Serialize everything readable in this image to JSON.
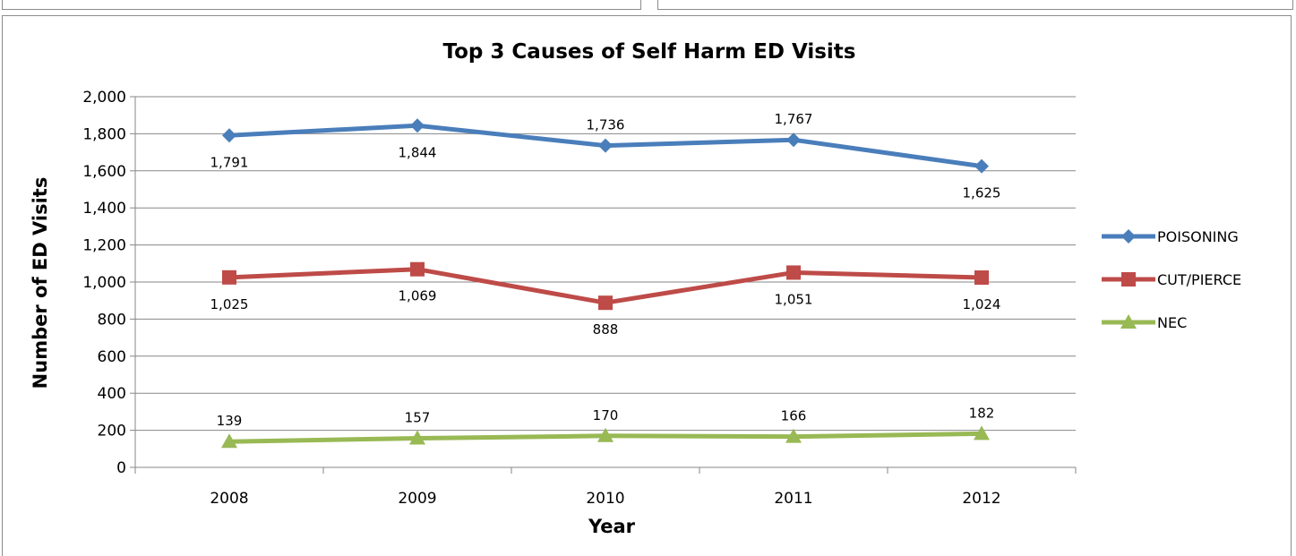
{
  "chart_data": {
    "type": "line",
    "title": "Top 3 Causes of Self Harm ED Visits",
    "xlabel": "Year",
    "ylabel": "Number of ED Visits",
    "categories": [
      "2008",
      "2009",
      "2010",
      "2011",
      "2012"
    ],
    "ylim": [
      0,
      2000
    ],
    "yticks": [
      0,
      200,
      400,
      600,
      800,
      1000,
      1200,
      1400,
      1600,
      1800,
      2000
    ],
    "ytick_labels": [
      "0",
      "200",
      "400",
      "600",
      "800",
      "1,000",
      "1,200",
      "1,400",
      "1,600",
      "1,800",
      "2,000"
    ],
    "grid": true,
    "legend_position": "right",
    "series": [
      {
        "name": "POISONING",
        "values": [
          1791,
          1844,
          1736,
          1767,
          1625
        ],
        "labels": [
          "1,791",
          "1,844",
          "1,736",
          "1,767",
          "1,625"
        ],
        "label_side": [
          "below",
          "below",
          "above",
          "above",
          "below"
        ],
        "color": "#4a7ebb",
        "marker": "diamond"
      },
      {
        "name": "CUT/PIERCE",
        "values": [
          1025,
          1069,
          888,
          1051,
          1024
        ],
        "labels": [
          "1,025",
          "1,069",
          "888",
          "1,051",
          "1,024"
        ],
        "label_side": [
          "below",
          "below",
          "below",
          "below",
          "below"
        ],
        "color": "#be4b48",
        "marker": "square"
      },
      {
        "name": "NEC",
        "values": [
          139,
          157,
          170,
          166,
          182
        ],
        "labels": [
          "139",
          "157",
          "170",
          "166",
          "182"
        ],
        "label_side": [
          "above",
          "above",
          "above",
          "above",
          "above"
        ],
        "color": "#98b954",
        "marker": "triangle"
      }
    ]
  }
}
